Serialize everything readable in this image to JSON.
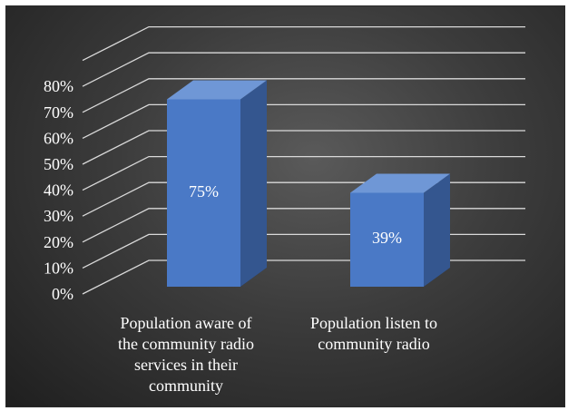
{
  "chart_data": {
    "type": "bar",
    "categories": [
      "Population aware of the community radio services in their community",
      "Population listen to community radio"
    ],
    "category_lines": [
      [
        "Population aware of",
        "the community radio",
        "services in their",
        "community"
      ],
      [
        "Population listen to",
        "community radio"
      ]
    ],
    "values": [
      75,
      39
    ],
    "data_labels": [
      "75%",
      "39%"
    ],
    "ylim": [
      0,
      80
    ],
    "yticks": [
      "0%",
      "10%",
      "20%",
      "30%",
      "40%",
      "50%",
      "60%",
      "70%",
      "80%"
    ],
    "grid": true,
    "legend": "none",
    "style": "3d-column"
  },
  "colors": {
    "bar_front": "#4a79c6",
    "bar_top": "#6f97d6",
    "bar_side": "#34568f",
    "gridline": "#d9d9d9",
    "text": "#ffffff"
  }
}
